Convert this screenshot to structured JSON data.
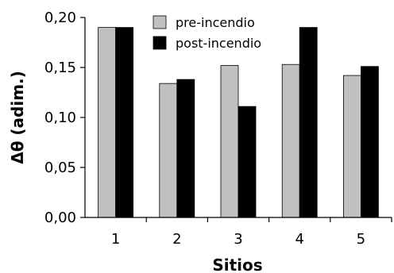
{
  "chart_data": {
    "type": "bar",
    "title": "",
    "xlabel": "Sitios",
    "ylabel": "Δθ (adim.)",
    "categories": [
      "1",
      "2",
      "3",
      "4",
      "5"
    ],
    "series": [
      {
        "name": "pre-incendio",
        "color": "#c0c0c0",
        "values": [
          0.19,
          0.134,
          0.152,
          0.153,
          0.142
        ]
      },
      {
        "name": "post-incendio",
        "color": "#000000",
        "values": [
          0.19,
          0.138,
          0.111,
          0.19,
          0.151
        ]
      }
    ],
    "ylim": [
      0,
      0.2
    ],
    "yticks": [
      0.0,
      0.05,
      0.1,
      0.15,
      0.2
    ],
    "ytick_labels": [
      "0,00",
      "0,05",
      "0,10",
      "0,15",
      "0,20"
    ],
    "grid": false,
    "legend_position": "top-center"
  }
}
